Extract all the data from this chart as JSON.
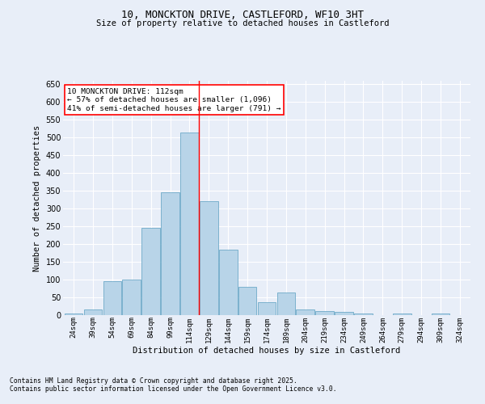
{
  "title1": "10, MONCKTON DRIVE, CASTLEFORD, WF10 3HT",
  "title2": "Size of property relative to detached houses in Castleford",
  "xlabel": "Distribution of detached houses by size in Castleford",
  "ylabel": "Number of detached properties",
  "categories": [
    "24sqm",
    "39sqm",
    "54sqm",
    "69sqm",
    "84sqm",
    "99sqm",
    "114sqm",
    "129sqm",
    "144sqm",
    "159sqm",
    "174sqm",
    "189sqm",
    "204sqm",
    "219sqm",
    "234sqm",
    "249sqm",
    "264sqm",
    "279sqm",
    "294sqm",
    "309sqm",
    "324sqm"
  ],
  "values": [
    5,
    15,
    95,
    100,
    245,
    345,
    515,
    320,
    185,
    80,
    37,
    63,
    17,
    12,
    8,
    4,
    0,
    4,
    0,
    4,
    0
  ],
  "bar_color": "#b8d4e8",
  "bar_edge_color": "#5a9fc0",
  "background_color": "#e8eef8",
  "grid_color": "#ffffff",
  "ylim": [
    0,
    660
  ],
  "yticks": [
    0,
    50,
    100,
    150,
    200,
    250,
    300,
    350,
    400,
    450,
    500,
    550,
    600,
    650
  ],
  "annotation_title": "10 MONCKTON DRIVE: 112sqm",
  "annotation_line1": "← 57% of detached houses are smaller (1,096)",
  "annotation_line2": "41% of semi-detached houses are larger (791) →",
  "footnote1": "Contains HM Land Registry data © Crown copyright and database right 2025.",
  "footnote2": "Contains public sector information licensed under the Open Government Licence v3.0."
}
